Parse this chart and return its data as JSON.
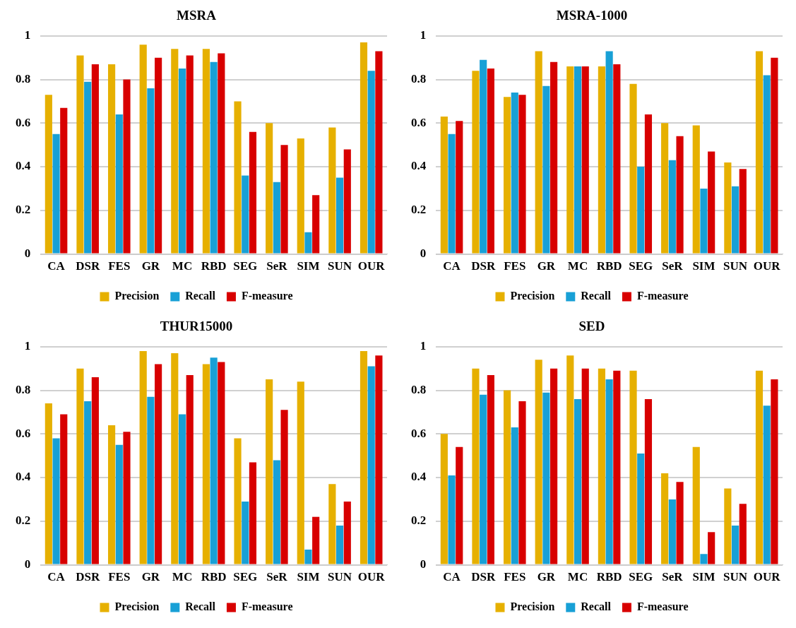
{
  "chart_data": [
    {
      "type": "bar",
      "title": "MSRA",
      "categories": [
        "CA",
        "DSR",
        "FES",
        "GR",
        "MC",
        "RBD",
        "SEG",
        "SeR",
        "SIM",
        "SUN",
        "OUR"
      ],
      "ylim": [
        0,
        1
      ],
      "yticks": [
        0,
        0.2,
        0.4,
        0.6,
        0.8,
        1
      ],
      "grid": "y",
      "legend": "bottom",
      "series": [
        {
          "name": "Precision",
          "color": "#e6b000",
          "values": [
            0.73,
            0.91,
            0.87,
            0.96,
            0.94,
            0.94,
            0.7,
            0.6,
            0.53,
            0.58,
            0.97
          ]
        },
        {
          "name": "Recall",
          "color": "#18a0d6",
          "values": [
            0.55,
            0.79,
            0.64,
            0.76,
            0.85,
            0.88,
            0.36,
            0.33,
            0.1,
            0.35,
            0.84
          ]
        },
        {
          "name": "F-measure",
          "color": "#d80000",
          "values": [
            0.67,
            0.87,
            0.8,
            0.9,
            0.91,
            0.92,
            0.56,
            0.5,
            0.27,
            0.48,
            0.93
          ]
        }
      ]
    },
    {
      "type": "bar",
      "title": "MSRA-1000",
      "categories": [
        "CA",
        "DSR",
        "FES",
        "GR",
        "MC",
        "RBD",
        "SEG",
        "SeR",
        "SIM",
        "SUN",
        "OUR"
      ],
      "ylim": [
        0,
        1
      ],
      "yticks": [
        0,
        0.2,
        0.4,
        0.6,
        0.8,
        1
      ],
      "grid": "y",
      "legend": "bottom",
      "series": [
        {
          "name": "Precision",
          "color": "#e6b000",
          "values": [
            0.63,
            0.84,
            0.72,
            0.93,
            0.86,
            0.86,
            0.78,
            0.6,
            0.59,
            0.42,
            0.93
          ]
        },
        {
          "name": "Recall",
          "color": "#18a0d6",
          "values": [
            0.55,
            0.89,
            0.74,
            0.77,
            0.86,
            0.93,
            0.4,
            0.43,
            0.3,
            0.31,
            0.82
          ]
        },
        {
          "name": "F-measure",
          "color": "#d80000",
          "values": [
            0.61,
            0.85,
            0.73,
            0.88,
            0.86,
            0.87,
            0.64,
            0.54,
            0.47,
            0.39,
            0.9
          ]
        }
      ]
    },
    {
      "type": "bar",
      "title": "THUR15000",
      "categories": [
        "CA",
        "DSR",
        "FES",
        "GR",
        "MC",
        "RBD",
        "SEG",
        "SeR",
        "SIM",
        "SUN",
        "OUR"
      ],
      "ylim": [
        0,
        1
      ],
      "yticks": [
        0,
        0.2,
        0.4,
        0.6,
        0.8,
        1
      ],
      "grid": "y",
      "legend": "bottom",
      "series": [
        {
          "name": "Precision",
          "color": "#e6b000",
          "values": [
            0.74,
            0.9,
            0.64,
            0.98,
            0.97,
            0.92,
            0.58,
            0.85,
            0.84,
            0.37,
            0.98
          ]
        },
        {
          "name": "Recall",
          "color": "#18a0d6",
          "values": [
            0.58,
            0.75,
            0.55,
            0.77,
            0.69,
            0.95,
            0.29,
            0.48,
            0.07,
            0.18,
            0.91
          ]
        },
        {
          "name": "F-measure",
          "color": "#d80000",
          "values": [
            0.69,
            0.86,
            0.61,
            0.92,
            0.87,
            0.93,
            0.47,
            0.71,
            0.22,
            0.29,
            0.96
          ]
        }
      ]
    },
    {
      "type": "bar",
      "title": "SED",
      "categories": [
        "CA",
        "DSR",
        "FES",
        "GR",
        "MC",
        "RBD",
        "SEG",
        "SeR",
        "SIM",
        "SUN",
        "OUR"
      ],
      "ylim": [
        0,
        1
      ],
      "yticks": [
        0,
        0.2,
        0.4,
        0.6,
        0.8,
        1
      ],
      "grid": "y",
      "legend": "bottom",
      "series": [
        {
          "name": "Precision",
          "color": "#e6b000",
          "values": [
            0.6,
            0.9,
            0.8,
            0.94,
            0.96,
            0.9,
            0.89,
            0.42,
            0.54,
            0.35,
            0.89
          ]
        },
        {
          "name": "Recall",
          "color": "#18a0d6",
          "values": [
            0.41,
            0.78,
            0.63,
            0.79,
            0.76,
            0.85,
            0.51,
            0.3,
            0.05,
            0.18,
            0.73
          ]
        },
        {
          "name": "F-measure",
          "color": "#d80000",
          "values": [
            0.54,
            0.87,
            0.75,
            0.9,
            0.9,
            0.89,
            0.76,
            0.38,
            0.15,
            0.28,
            0.85
          ]
        }
      ]
    }
  ]
}
